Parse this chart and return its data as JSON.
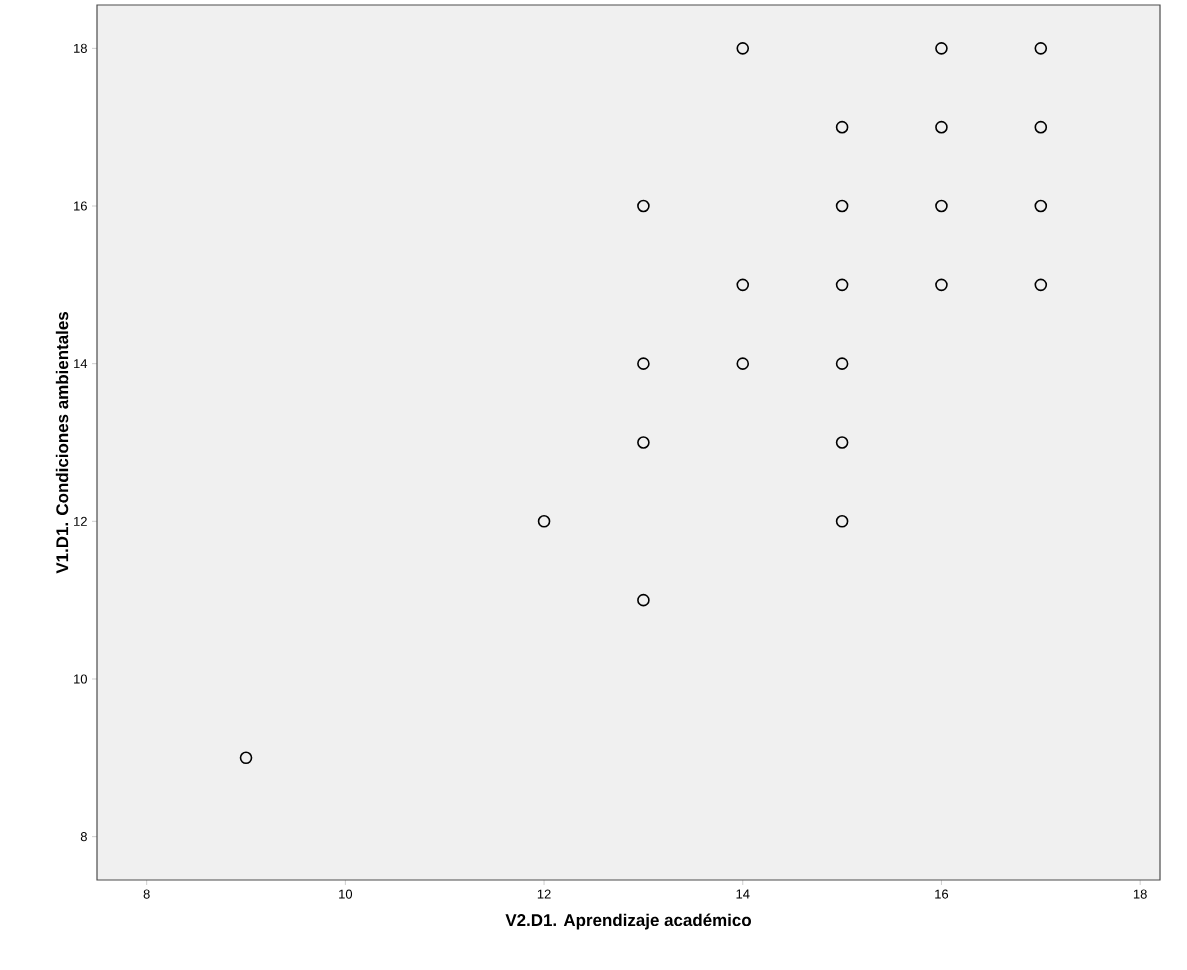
{
  "chart_data": {
    "type": "scatter",
    "xlabel": "V2.D1. Aprendizaje académico",
    "ylabel": "V1.D1. Condiciones ambientales",
    "x": [
      14,
      16,
      17,
      15,
      16,
      17,
      13,
      15,
      16,
      17,
      14,
      15,
      16,
      17,
      13,
      14,
      15,
      13,
      15,
      12,
      15,
      13,
      9
    ],
    "values": [
      18,
      18,
      18,
      17,
      17,
      17,
      16,
      16,
      16,
      16,
      15,
      15,
      15,
      15,
      14,
      14,
      14,
      13,
      13,
      12,
      12,
      11,
      9
    ],
    "color": "#000000",
    "marker": "circle",
    "grid": false,
    "xlim": [
      7.5,
      18.2
    ],
    "ylim": [
      7.45,
      18.55
    ],
    "xticks": [
      8,
      10,
      12,
      14,
      16,
      18
    ],
    "yticks": [
      8,
      10,
      12,
      14,
      16,
      18
    ]
  }
}
